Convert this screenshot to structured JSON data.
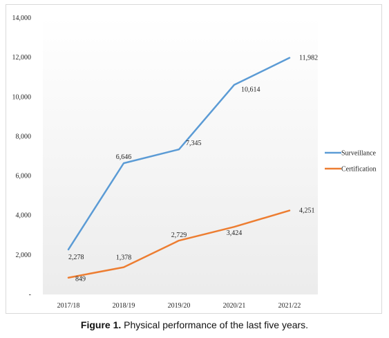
{
  "chart_data": {
    "type": "line",
    "categories": [
      "2017/18",
      "2018/19",
      "2019/20",
      "2020/21",
      "2021/22"
    ],
    "y_ticks": [
      "-",
      "2,000",
      "4,000",
      "6,000",
      "8,000",
      "10,000",
      "12,000",
      "14,000"
    ],
    "ylim": [
      0,
      14000
    ],
    "grid": false,
    "legend": "right",
    "series": [
      {
        "name": "Surveillance",
        "color": "#5b9bd5",
        "values": [
          2278,
          6646,
          7345,
          10614,
          11982
        ],
        "labels": [
          "2,278",
          "6,646",
          "7,345",
          "10,614",
          "11,982"
        ]
      },
      {
        "name": "Certification",
        "color": "#ed7d31",
        "values": [
          849,
          1378,
          2729,
          3424,
          4251
        ],
        "labels": [
          "849",
          "1,378",
          "2,729",
          "3,424",
          "4,251"
        ]
      }
    ]
  },
  "caption": {
    "prefix": "Figure 1.",
    "text": " Physical performance of the last five years."
  }
}
